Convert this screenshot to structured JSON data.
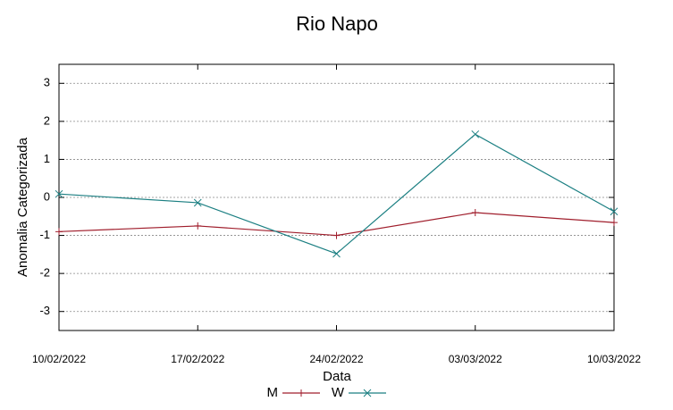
{
  "chart_data": {
    "type": "line",
    "title": "Rio Napo",
    "x_label": "Data",
    "y_label": "Anomalia Categorizada",
    "x": [
      "10/02/2022",
      "17/02/2022",
      "24/02/2022",
      "03/03/2022",
      "10/03/2022"
    ],
    "series": [
      {
        "name": "M",
        "color": "#a01e2c",
        "marker": "plus",
        "values": [
          -0.9,
          -0.75,
          -1.0,
          -0.4,
          -0.66
        ]
      },
      {
        "name": "W",
        "color": "#1b7f82",
        "marker": "cross",
        "values": [
          0.09,
          -0.14,
          -1.48,
          1.66,
          -0.37
        ]
      }
    ],
    "ylim": [
      -3.5,
      3.5
    ],
    "yticks": [
      -3,
      -2,
      -1,
      0,
      1,
      2,
      3
    ],
    "grid": true
  }
}
